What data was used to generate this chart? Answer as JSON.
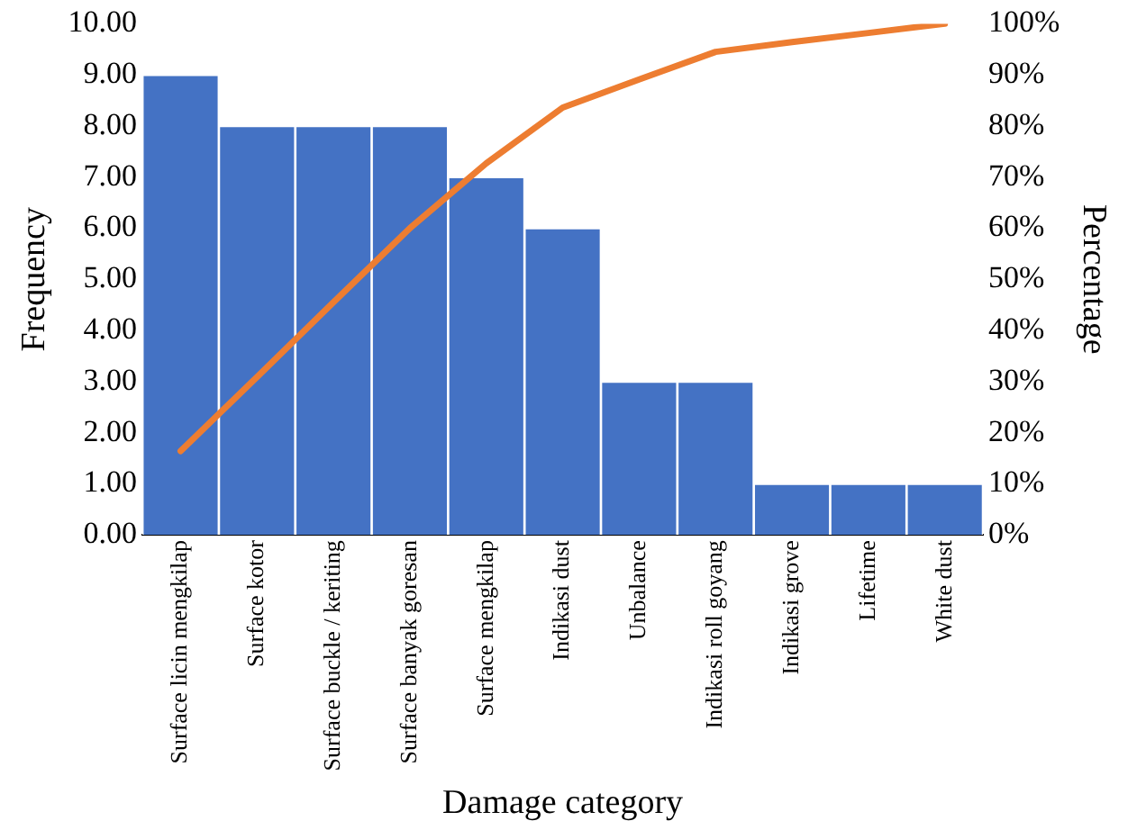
{
  "chart_data": {
    "type": "bar",
    "xlabel": "Damage category",
    "ylabel": "Frequency",
    "y2label": "Percentage",
    "categories": [
      "Surface licin mengkilap",
      "Surface kotor",
      "Surface buckle / keriting",
      "Surface banyak goresan",
      "Surface mengkilap",
      "Indikasi dust",
      "Unbalance",
      "Indikasi roll goyang",
      "Indikasi grove",
      "Lifetime",
      "White dust"
    ],
    "series": [
      {
        "color": "#4472c4",
        "values": [
          9,
          8,
          8,
          8,
          7,
          6,
          3,
          3,
          1,
          1,
          1
        ]
      },
      {
        "type": "line",
        "axis": "y2",
        "color": "#ed7d31",
        "values": [
          16.4,
          30.9,
          45.5,
          60.0,
          72.7,
          83.6,
          89.1,
          94.5,
          96.4,
          98.2,
          100
        ]
      }
    ],
    "ylim": [
      0,
      10
    ],
    "yticks": [
      {
        "value": 0,
        "label": "0.00"
      },
      {
        "value": 1,
        "label": "1.00"
      },
      {
        "value": 2,
        "label": "2.00"
      },
      {
        "value": 3,
        "label": "3.00"
      },
      {
        "value": 4,
        "label": "4.00"
      },
      {
        "value": 5,
        "label": "5.00"
      },
      {
        "value": 6,
        "label": "6.00"
      },
      {
        "value": 7,
        "label": "7.00"
      },
      {
        "value": 8,
        "label": "8.00"
      },
      {
        "value": 9,
        "label": "9.00"
      },
      {
        "value": 10,
        "label": "10.00"
      }
    ],
    "y2lim": [
      0,
      100
    ],
    "y2ticks": [
      {
        "value": 0,
        "label": "0%"
      },
      {
        "value": 10,
        "label": "10%"
      },
      {
        "value": 20,
        "label": "20%"
      },
      {
        "value": 30,
        "label": "30%"
      },
      {
        "value": 40,
        "label": "40%"
      },
      {
        "value": 50,
        "label": "50%"
      },
      {
        "value": 60,
        "label": "60%"
      },
      {
        "value": 70,
        "label": "70%"
      },
      {
        "value": 80,
        "label": "80%"
      },
      {
        "value": 90,
        "label": "90%"
      },
      {
        "value": 100,
        "label": "100%"
      }
    ],
    "grid": false,
    "legend": false,
    "marker": "none",
    "line_style": "solid"
  }
}
